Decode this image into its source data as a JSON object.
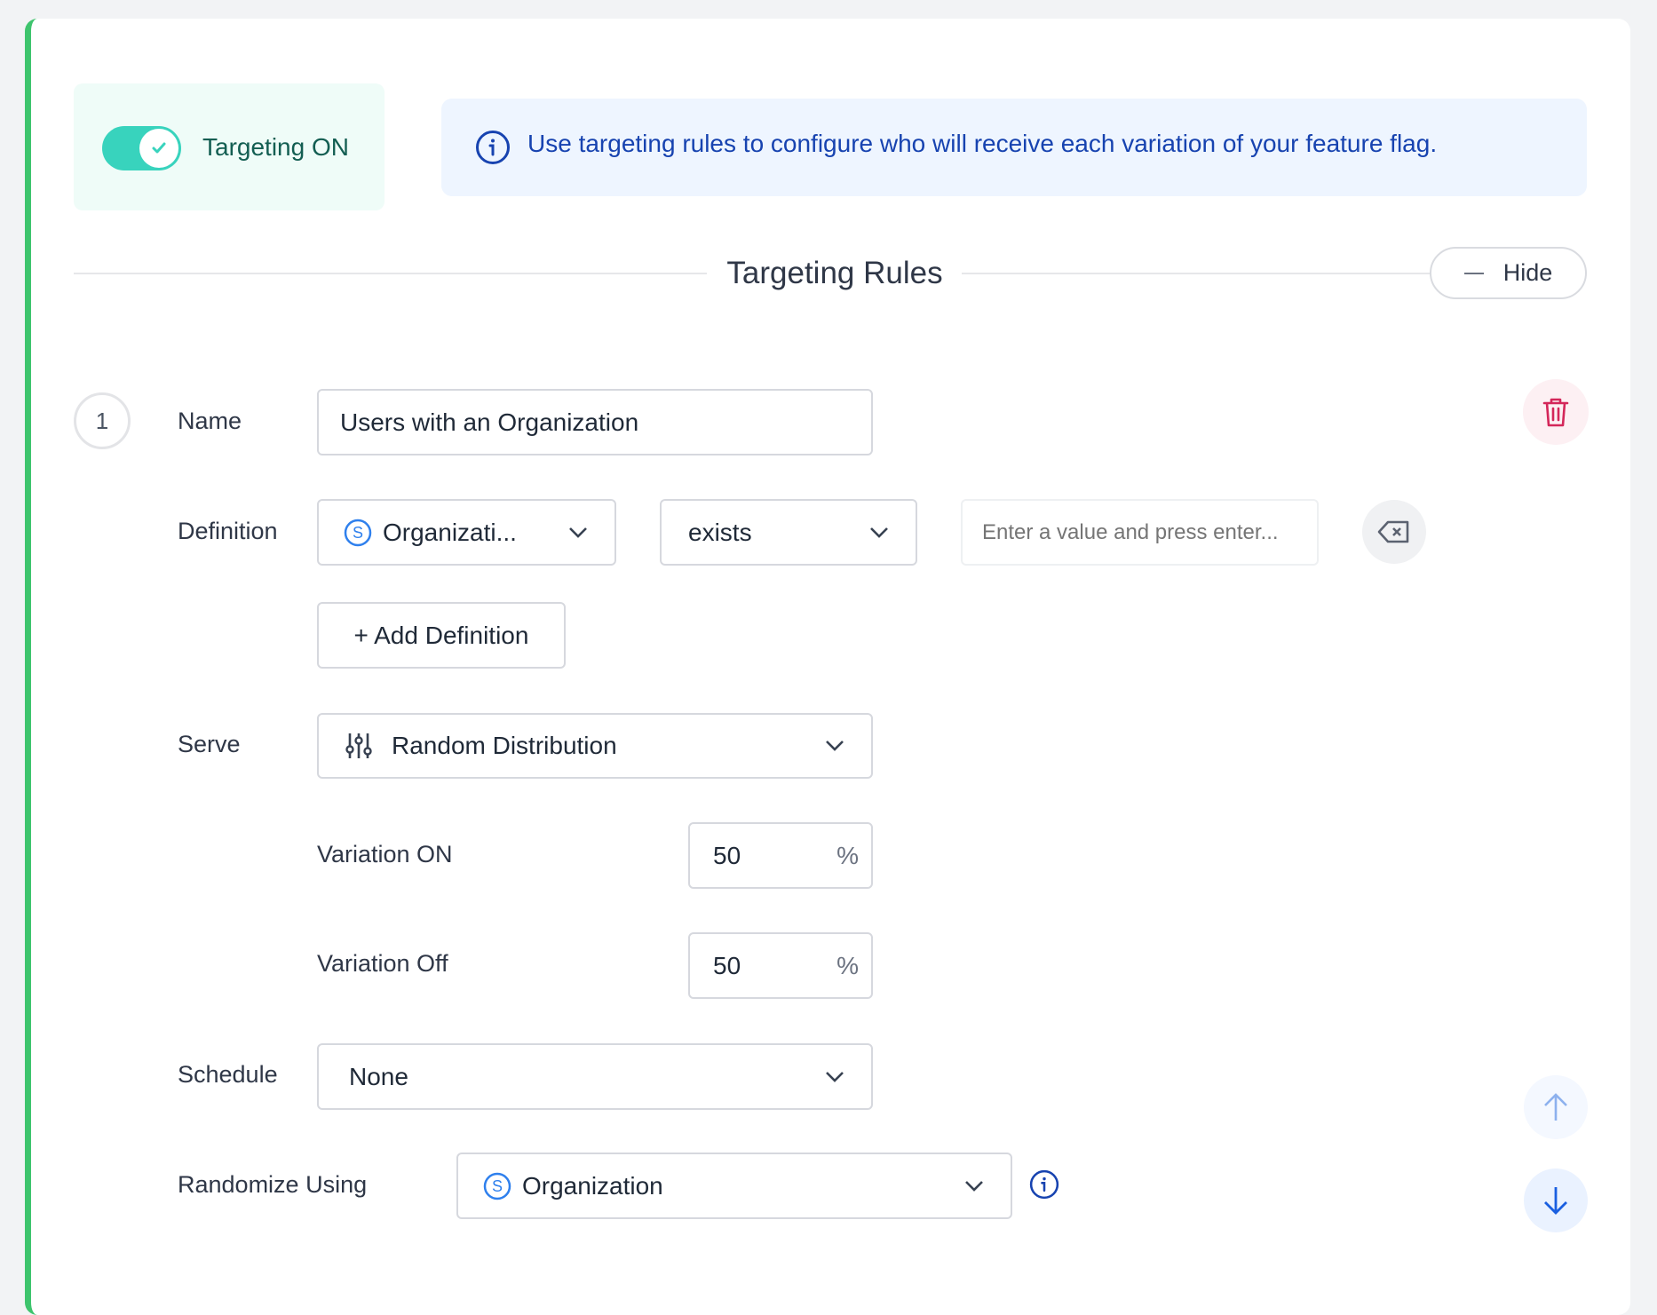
{
  "toggle": {
    "label": "Targeting ON",
    "on": true,
    "color": "#38d3bd"
  },
  "banner": {
    "text": "Use targeting rules to configure who will receive each variation of your feature flag.",
    "icon": "info-icon"
  },
  "section": {
    "title": "Targeting Rules",
    "hide_label": "Hide"
  },
  "rule": {
    "number": "1",
    "name_label": "Name",
    "name_value": "Users with an Organization",
    "definition_label": "Definition",
    "attribute_value": "Organizati...",
    "operator_value": "exists",
    "value_placeholder": "Enter a value and press enter...",
    "add_definition_label": "+ Add Definition",
    "serve_label": "Serve",
    "serve_value": "Random Distribution",
    "variations": [
      {
        "label": "Variation ON",
        "value": "50",
        "unit": "%"
      },
      {
        "label": "Variation Off",
        "value": "50",
        "unit": "%"
      }
    ],
    "schedule_label": "Schedule",
    "schedule_value": "None",
    "randomize_label": "Randomize Using",
    "randomize_value": "Organization"
  },
  "colors": {
    "accent": "#3ec46d",
    "info": "#1743b0",
    "danger": "#d4275a"
  }
}
